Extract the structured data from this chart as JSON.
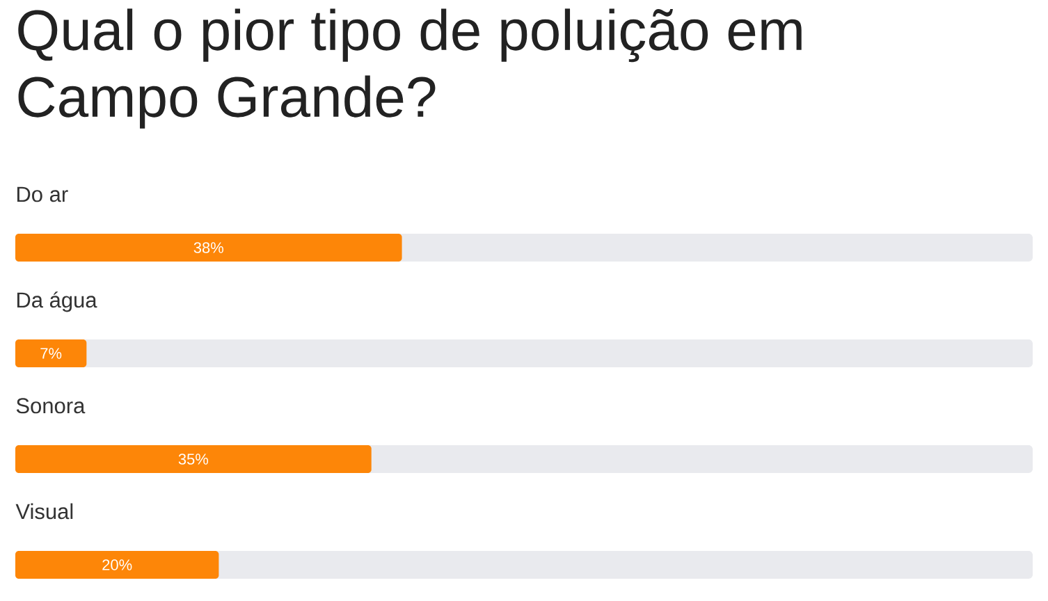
{
  "chart_data": {
    "type": "bar",
    "orientation": "horizontal",
    "title": "Qual o pior tipo de poluição em Campo Grande?",
    "categories": [
      "Do ar",
      "Da água",
      "Sonora",
      "Visual"
    ],
    "values": [
      38,
      7,
      35,
      20
    ],
    "color": "#fd8608",
    "xlim": [
      0,
      100
    ],
    "value_labels": [
      "38%",
      "7%",
      "35%",
      "20%"
    ],
    "tick_labels": "y"
  }
}
